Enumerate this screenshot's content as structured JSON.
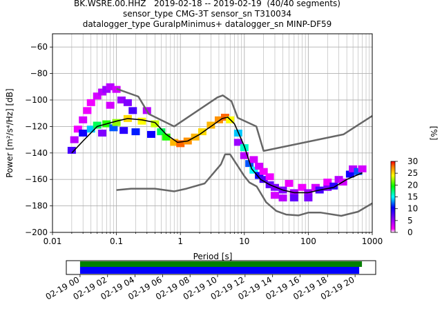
{
  "figure": {
    "title_lines": [
      "BK.WSRE.00.HHZ   2019-02-18 -- 2019-02-19  (40/40 segments)",
      "sensor_type CMG-3T sensor_sn T310034",
      "datalogger_type GuralpMinimus+ datalogger_sn MINP-DF59"
    ]
  },
  "colors": {
    "grid": "#b0b0b0",
    "noise_model": "#666666",
    "mean_curve": "#000000",
    "coverage_green": "#008000",
    "coverage_blue": "#0000ff"
  },
  "chart_data": [
    {
      "type": "heatmap",
      "subtype": "probabilistic power spectral density",
      "xlabel": "Period [s]",
      "ylabel": "Power [m²/s⁴/Hz] [dB]",
      "xscale": "log",
      "xlim": [
        0.01,
        1000
      ],
      "ylim": [
        -200,
        -50
      ],
      "x_ticks": [
        0.01,
        0.1,
        1,
        10,
        100,
        1000
      ],
      "x_tick_labels": [
        "0.01",
        "0.1",
        "1",
        "10",
        "100",
        "1000"
      ],
      "y_ticks": [
        -200,
        -180,
        -160,
        -140,
        -120,
        -100,
        -80,
        -60
      ],
      "y_tick_labels": [
        "−200",
        "−180",
        "−160",
        "−140",
        "−120",
        "−100",
        "−80",
        "−60"
      ],
      "grid": true,
      "colorbar": {
        "label": "[%]",
        "range": [
          0,
          30
        ],
        "ticks": [
          0,
          5,
          10,
          15,
          20,
          25,
          30
        ],
        "colormap": "pqlx"
      },
      "noise_models": {
        "high": {
          "period": [
            0.1,
            0.22,
            0.32,
            0.8,
            3.8,
            4.6,
            6.3,
            7.9,
            15.4,
            20,
            354.8,
            1000
          ],
          "db": [
            -91.5,
            -97.4,
            -110.5,
            -120,
            -98,
            -96.5,
            -101,
            -113.5,
            -120,
            -138.5,
            -126,
            -112
          ]
        },
        "low": {
          "period": [
            0.1,
            0.17,
            0.4,
            0.8,
            1.24,
            2.4,
            4.3,
            5,
            6,
            10,
            12,
            15.6,
            21.9,
            31.6,
            45,
            70,
            101,
            154,
            328,
            600,
            1000
          ],
          "db": [
            -168,
            -167,
            -167,
            -169,
            -167,
            -163,
            -148.6,
            -141.1,
            -141.1,
            -157.5,
            -162.3,
            -165.3,
            -177.2,
            -183.8,
            -186.5,
            -187.2,
            -185,
            -185,
            -187.5,
            -184.4,
            -178
          ]
        }
      },
      "mean_curve": {
        "period": [
          0.02,
          0.03,
          0.05,
          0.1,
          0.15,
          0.25,
          0.4,
          0.6,
          0.9,
          1.3,
          2,
          3,
          4.5,
          5.5,
          7,
          10,
          13,
          18,
          25,
          40,
          60,
          100,
          150,
          250,
          400,
          700
        ],
        "db": [
          -140,
          -131,
          -120,
          -116,
          -114,
          -115,
          -117,
          -126,
          -132,
          -131,
          -126,
          -120,
          -114,
          -113,
          -118,
          -135,
          -152,
          -160,
          -164,
          -168,
          -170,
          -170,
          -168,
          -166,
          -160,
          -155
        ]
      },
      "density_cells": [
        {
          "period": 0.02,
          "db": -138,
          "pct": 8
        },
        {
          "period": 0.022,
          "db": -130,
          "pct": 4
        },
        {
          "period": 0.025,
          "db": -122,
          "pct": 2
        },
        {
          "period": 0.03,
          "db": -115,
          "pct": 3
        },
        {
          "period": 0.03,
          "db": -125,
          "pct": 10
        },
        {
          "period": 0.035,
          "db": -108,
          "pct": 2
        },
        {
          "period": 0.04,
          "db": -102,
          "pct": 2
        },
        {
          "period": 0.04,
          "db": -122,
          "pct": 14
        },
        {
          "period": 0.05,
          "db": -97,
          "pct": 3
        },
        {
          "period": 0.05,
          "db": -119,
          "pct": 18
        },
        {
          "period": 0.06,
          "db": -94,
          "pct": 4
        },
        {
          "period": 0.06,
          "db": -125,
          "pct": 6
        },
        {
          "period": 0.07,
          "db": -92,
          "pct": 5
        },
        {
          "period": 0.07,
          "db": -118,
          "pct": 20
        },
        {
          "period": 0.08,
          "db": -90,
          "pct": 4
        },
        {
          "period": 0.08,
          "db": -104,
          "pct": 3
        },
        {
          "period": 0.09,
          "db": -121,
          "pct": 12
        },
        {
          "period": 0.1,
          "db": -92,
          "pct": 3
        },
        {
          "period": 0.1,
          "db": -117,
          "pct": 22
        },
        {
          "period": 0.12,
          "db": -100,
          "pct": 5
        },
        {
          "period": 0.13,
          "db": -123,
          "pct": 9
        },
        {
          "period": 0.15,
          "db": -102,
          "pct": 6
        },
        {
          "period": 0.15,
          "db": -114,
          "pct": 25
        },
        {
          "period": 0.18,
          "db": -108,
          "pct": 8
        },
        {
          "period": 0.2,
          "db": -124,
          "pct": 11
        },
        {
          "period": 0.25,
          "db": -116,
          "pct": 24
        },
        {
          "period": 0.3,
          "db": -108,
          "pct": 4
        },
        {
          "period": 0.35,
          "db": -126,
          "pct": 10
        },
        {
          "period": 0.4,
          "db": -118,
          "pct": 23
        },
        {
          "period": 0.5,
          "db": -124,
          "pct": 18
        },
        {
          "period": 0.6,
          "db": -128,
          "pct": 20
        },
        {
          "period": 0.8,
          "db": -132,
          "pct": 26
        },
        {
          "period": 1.0,
          "db": -133,
          "pct": 28
        },
        {
          "period": 1.3,
          "db": -131,
          "pct": 27
        },
        {
          "period": 1.7,
          "db": -128,
          "pct": 26
        },
        {
          "period": 2.2,
          "db": -124,
          "pct": 25
        },
        {
          "period": 3.0,
          "db": -119,
          "pct": 26
        },
        {
          "period": 4.0,
          "db": -115,
          "pct": 27
        },
        {
          "period": 5.0,
          "db": -113,
          "pct": 28
        },
        {
          "period": 6.0,
          "db": -115,
          "pct": 24
        },
        {
          "period": 8.0,
          "db": -125,
          "pct": 14
        },
        {
          "period": 8.0,
          "db": -132,
          "pct": 5
        },
        {
          "period": 10.0,
          "db": -136,
          "pct": 16
        },
        {
          "period": 10.0,
          "db": -142,
          "pct": 4
        },
        {
          "period": 12.0,
          "db": -148,
          "pct": 12
        },
        {
          "period": 14.0,
          "db": -153,
          "pct": 15
        },
        {
          "period": 14.0,
          "db": -145,
          "pct": 3
        },
        {
          "period": 17.0,
          "db": -157,
          "pct": 10
        },
        {
          "period": 17.0,
          "db": -150,
          "pct": 3
        },
        {
          "period": 20.0,
          "db": -160,
          "pct": 8
        },
        {
          "period": 20.0,
          "db": -154,
          "pct": 2
        },
        {
          "period": 25.0,
          "db": -164,
          "pct": 7
        },
        {
          "period": 25.0,
          "db": -158,
          "pct": 2
        },
        {
          "period": 30.0,
          "db": -166,
          "pct": 6
        },
        {
          "period": 30.0,
          "db": -172,
          "pct": 3
        },
        {
          "period": 40.0,
          "db": -168,
          "pct": 6
        },
        {
          "period": 40.0,
          "db": -174,
          "pct": 4
        },
        {
          "period": 50.0,
          "db": -163,
          "pct": 2
        },
        {
          "period": 60.0,
          "db": -170,
          "pct": 5
        },
        {
          "period": 60.0,
          "db": -174,
          "pct": 7
        },
        {
          "period": 80.0,
          "db": -166,
          "pct": 2
        },
        {
          "period": 100.0,
          "db": -170,
          "pct": 5
        },
        {
          "period": 100.0,
          "db": -174,
          "pct": 6
        },
        {
          "period": 130.0,
          "db": -166,
          "pct": 3
        },
        {
          "period": 150.0,
          "db": -168,
          "pct": 8
        },
        {
          "period": 200.0,
          "db": -166,
          "pct": 6
        },
        {
          "period": 200.0,
          "db": -162,
          "pct": 2
        },
        {
          "period": 250.0,
          "db": -165,
          "pct": 9
        },
        {
          "period": 300.0,
          "db": -160,
          "pct": 4
        },
        {
          "period": 350.0,
          "db": -162,
          "pct": 3
        },
        {
          "period": 450.0,
          "db": -156,
          "pct": 10
        },
        {
          "period": 500.0,
          "db": -152,
          "pct": 4
        },
        {
          "period": 600.0,
          "db": -154,
          "pct": 12
        },
        {
          "period": 700.0,
          "db": -152,
          "pct": 3
        }
      ]
    },
    {
      "type": "bar",
      "subtype": "data coverage timeline",
      "x_tick_labels": [
        "02-19 00",
        "02-19 02",
        "02-19 04",
        "02-19 06",
        "02-19 08",
        "02-19 10",
        "02-19 12",
        "02-19 14",
        "02-19 16",
        "02-19 18",
        "02-19 20"
      ],
      "x_ticks_hours": [
        0,
        2,
        4,
        6,
        8,
        10,
        12,
        14,
        16,
        18,
        20
      ],
      "xlim_hours": [
        -1,
        21.5
      ],
      "series": [
        {
          "color": "#008000",
          "start_hour": 0,
          "end_hour": 20.5
        },
        {
          "color": "#0000ff",
          "start_hour": 0,
          "end_hour": 20.3
        }
      ]
    }
  ]
}
